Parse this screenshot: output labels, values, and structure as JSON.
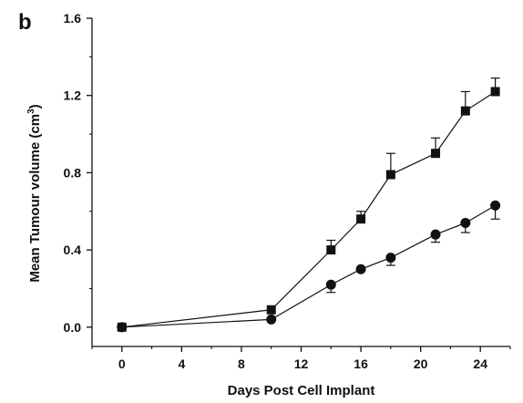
{
  "panel_label": "b",
  "chart_data": {
    "type": "line",
    "xlabel": "Days Post Cell Implant",
    "ylabel": "Mean Tumour volume (cm",
    "ylabel_superscript": "3",
    "ylabel_suffix": ")",
    "xlim": [
      -2,
      26
    ],
    "ylim": [
      -0.1,
      1.6
    ],
    "x_ticks": [
      0,
      4,
      8,
      12,
      16,
      20,
      24
    ],
    "y_ticks": [
      0.0,
      0.4,
      0.8,
      1.2,
      1.6
    ],
    "y_tick_labels": [
      "0.0",
      "0.4",
      "0.8",
      "1.2",
      "1.6"
    ],
    "grid": false,
    "legend": "none",
    "series": [
      {
        "marker": "square",
        "color": "#111111",
        "x": [
          0,
          10,
          14,
          16,
          18,
          21,
          23,
          25
        ],
        "values": [
          0.0,
          0.09,
          0.4,
          0.56,
          0.79,
          0.9,
          1.12,
          1.22
        ],
        "error_upper": [
          0.0,
          0.0,
          0.05,
          0.04,
          0.11,
          0.08,
          0.1,
          0.07
        ]
      },
      {
        "marker": "circle",
        "color": "#111111",
        "x": [
          0,
          10,
          14,
          16,
          18,
          21,
          23,
          25
        ],
        "values": [
          0.0,
          0.04,
          0.22,
          0.3,
          0.36,
          0.48,
          0.54,
          0.63
        ],
        "error_lower": [
          0.0,
          0.0,
          0.04,
          0.0,
          0.04,
          0.04,
          0.05,
          0.07
        ]
      }
    ]
  }
}
